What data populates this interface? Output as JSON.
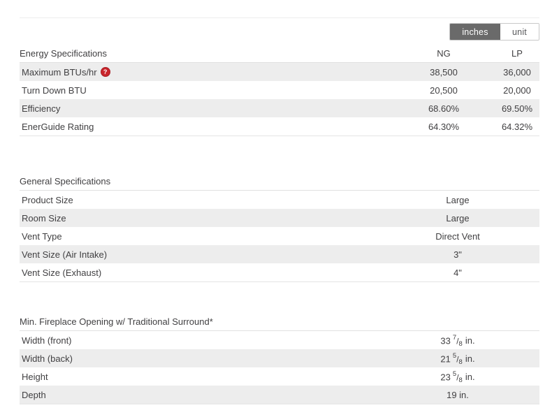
{
  "toggle": {
    "options": [
      {
        "label": "inches",
        "selected": true
      },
      {
        "label": "unit",
        "selected": false
      }
    ]
  },
  "fraction_separator": "/",
  "help_icon_glyph": "?",
  "colors": {
    "toggle_selected_bg": "#6a6a6a",
    "row_shade": "#ededed",
    "help_red": "#c9252c",
    "text": "#414042"
  },
  "sections": {
    "energy": {
      "title": "Energy Specifications",
      "columns": [
        "NG",
        "LP"
      ],
      "rows": [
        {
          "label": "Maximum BTUs/hr",
          "has_help": true,
          "ng": "38,500",
          "lp": "36,000"
        },
        {
          "label": "Turn Down BTU",
          "ng": "20,500",
          "lp": "20,000"
        },
        {
          "label": "Efficiency",
          "ng": "68.60%",
          "lp": "69.50%"
        },
        {
          "label": "EnerGuide Rating",
          "ng": "64.30%",
          "lp": "64.32%"
        }
      ]
    },
    "general": {
      "title": "General Specifications",
      "rows": [
        {
          "label": "Product Size",
          "value": "Large"
        },
        {
          "label": "Room Size",
          "value": "Large"
        },
        {
          "label": "Vent Type",
          "value": "Direct Vent"
        },
        {
          "label": "Vent Size (Air Intake)",
          "value": "3\""
        },
        {
          "label": "Vent Size (Exhaust)",
          "value": "4\""
        }
      ]
    },
    "opening": {
      "title": "Min. Fireplace Opening w/ Traditional Surround*",
      "rows": [
        {
          "label": "Width (front)",
          "whole": "33",
          "num": "7",
          "den": "8",
          "unit": "in."
        },
        {
          "label": "Width (back)",
          "whole": "21",
          "num": "5",
          "den": "8",
          "unit": "in."
        },
        {
          "label": "Height",
          "whole": "23",
          "num": "5",
          "den": "8",
          "unit": "in."
        },
        {
          "label": "Depth",
          "value": "19 in."
        }
      ]
    }
  }
}
